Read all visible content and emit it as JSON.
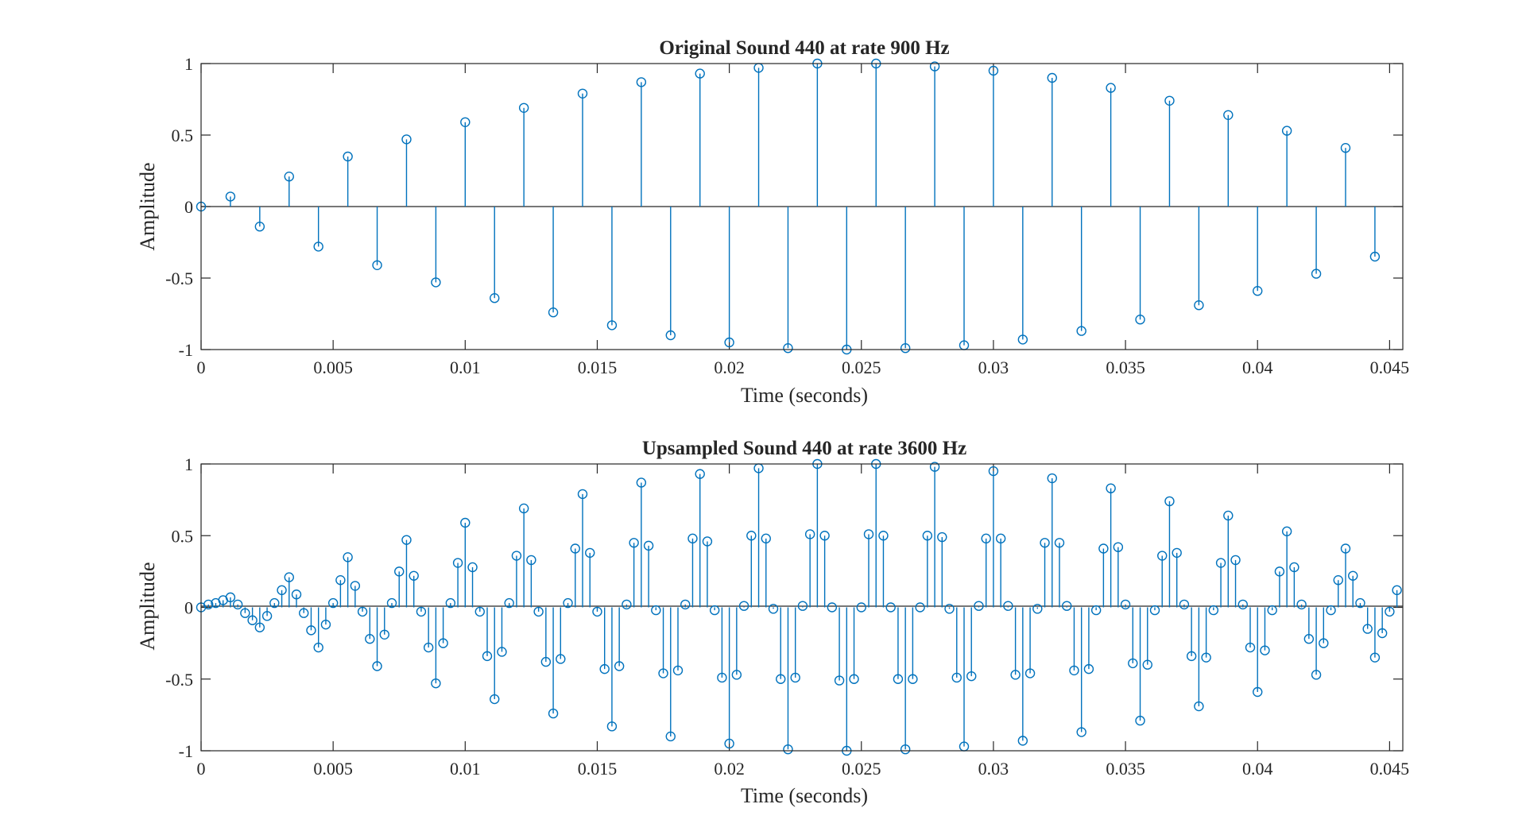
{
  "chart_data": [
    {
      "type": "stem",
      "title": "Original Sound 440 at rate 900 Hz",
      "xlabel": "Time (seconds)",
      "ylabel": "Amplitude",
      "xlim": [
        0,
        0.0455
      ],
      "ylim": [
        -1,
        1
      ],
      "xticks": [
        0,
        0.005,
        0.01,
        0.015,
        0.02,
        0.025,
        0.03,
        0.035,
        0.04,
        0.045
      ],
      "xtick_labels": [
        "0",
        "0.005",
        "0.01",
        "0.015",
        "0.02",
        "0.025",
        "0.03",
        "0.035",
        "0.04",
        "0.045"
      ],
      "yticks": [
        -1,
        -0.5,
        0,
        0.5,
        1
      ],
      "ytick_labels": [
        "-1",
        "-0.5",
        "0",
        "0.5",
        "1"
      ],
      "grid": false,
      "color": "#0072BD",
      "x": [
        0,
        0.001111,
        0.002222,
        0.003333,
        0.004444,
        0.005556,
        0.006667,
        0.007778,
        0.008889,
        0.01,
        0.011111,
        0.012222,
        0.013333,
        0.014444,
        0.015556,
        0.016667,
        0.017778,
        0.018889,
        0.02,
        0.021111,
        0.022222,
        0.023333,
        0.024444,
        0.025556,
        0.026667,
        0.027778,
        0.028889,
        0.03,
        0.031111,
        0.032222,
        0.033333,
        0.034444,
        0.035556,
        0.036667,
        0.037778,
        0.038889,
        0.04,
        0.041111,
        0.042222,
        0.043333,
        0.044444
      ],
      "y": [
        0,
        0.07,
        -0.14,
        0.21,
        -0.28,
        0.35,
        -0.41,
        0.47,
        -0.53,
        0.59,
        -0.64,
        0.69,
        -0.74,
        0.79,
        -0.83,
        0.87,
        -0.9,
        0.93,
        -0.95,
        0.97,
        -0.99,
        1.0,
        -1.0,
        1.0,
        -0.99,
        0.98,
        -0.97,
        0.95,
        -0.93,
        0.9,
        -0.87,
        0.83,
        -0.79,
        0.74,
        -0.69,
        0.64,
        -0.59,
        0.53,
        -0.47,
        0.41,
        -0.35
      ]
    },
    {
      "type": "stem",
      "title": "Upsampled Sound 440 at rate 3600 Hz",
      "xlabel": "Time (seconds)",
      "ylabel": "Amplitude",
      "xlim": [
        0,
        0.0455
      ],
      "ylim": [
        -1,
        1
      ],
      "xticks": [
        0,
        0.005,
        0.01,
        0.015,
        0.02,
        0.025,
        0.03,
        0.035,
        0.04,
        0.045
      ],
      "xtick_labels": [
        "0",
        "0.005",
        "0.01",
        "0.015",
        "0.02",
        "0.025",
        "0.03",
        "0.035",
        "0.04",
        "0.045"
      ],
      "yticks": [
        -1,
        -0.5,
        0,
        0.5,
        1
      ],
      "ytick_labels": [
        "-1",
        "-0.5",
        "0",
        "0.5",
        "1"
      ],
      "grid": false,
      "color": "#0072BD",
      "sample_rate_hz": 3600,
      "y": [
        0,
        0.02,
        0.03,
        0.05,
        0.07,
        0.02,
        -0.04,
        -0.09,
        -0.14,
        -0.06,
        0.03,
        0.12,
        0.21,
        0.09,
        -0.04,
        -0.16,
        -0.28,
        -0.12,
        0.03,
        0.19,
        0.35,
        0.15,
        -0.03,
        -0.22,
        -0.41,
        -0.19,
        0.03,
        0.25,
        0.47,
        0.22,
        -0.03,
        -0.28,
        -0.53,
        -0.25,
        0.03,
        0.31,
        0.59,
        0.28,
        -0.03,
        -0.34,
        -0.64,
        -0.31,
        0.03,
        0.36,
        0.69,
        0.33,
        -0.03,
        -0.38,
        -0.74,
        -0.36,
        0.03,
        0.41,
        0.79,
        0.38,
        -0.03,
        -0.43,
        -0.83,
        -0.41,
        0.02,
        0.45,
        0.87,
        0.43,
        -0.02,
        -0.46,
        -0.9,
        -0.44,
        0.02,
        0.48,
        0.93,
        0.46,
        -0.02,
        -0.49,
        -0.95,
        -0.47,
        0.01,
        0.5,
        0.97,
        0.48,
        -0.01,
        -0.5,
        -0.99,
        -0.49,
        0.01,
        0.51,
        1.0,
        0.5,
        0,
        -0.51,
        -1.0,
        -0.5,
        0,
        0.51,
        1.0,
        0.5,
        0,
        -0.5,
        -0.99,
        -0.5,
        0,
        0.5,
        0.98,
        0.49,
        -0.01,
        -0.49,
        -0.97,
        -0.48,
        0.01,
        0.48,
        0.95,
        0.48,
        0.01,
        -0.47,
        -0.93,
        -0.46,
        -0.01,
        0.45,
        0.9,
        0.45,
        0.01,
        -0.44,
        -0.87,
        -0.43,
        -0.02,
        0.41,
        0.83,
        0.42,
        0.02,
        -0.39,
        -0.79,
        -0.4,
        -0.02,
        0.36,
        0.74,
        0.38,
        0.02,
        -0.34,
        -0.69,
        -0.35,
        -0.02,
        0.31,
        0.64,
        0.33,
        0.02,
        -0.28,
        -0.59,
        -0.3,
        -0.02,
        0.25,
        0.53,
        0.28,
        0.02,
        -0.22,
        -0.47,
        -0.25,
        -0.02,
        0.19,
        0.41,
        0.22,
        0.03,
        -0.15,
        -0.35,
        -0.18,
        -0.03,
        0.12
      ]
    }
  ]
}
